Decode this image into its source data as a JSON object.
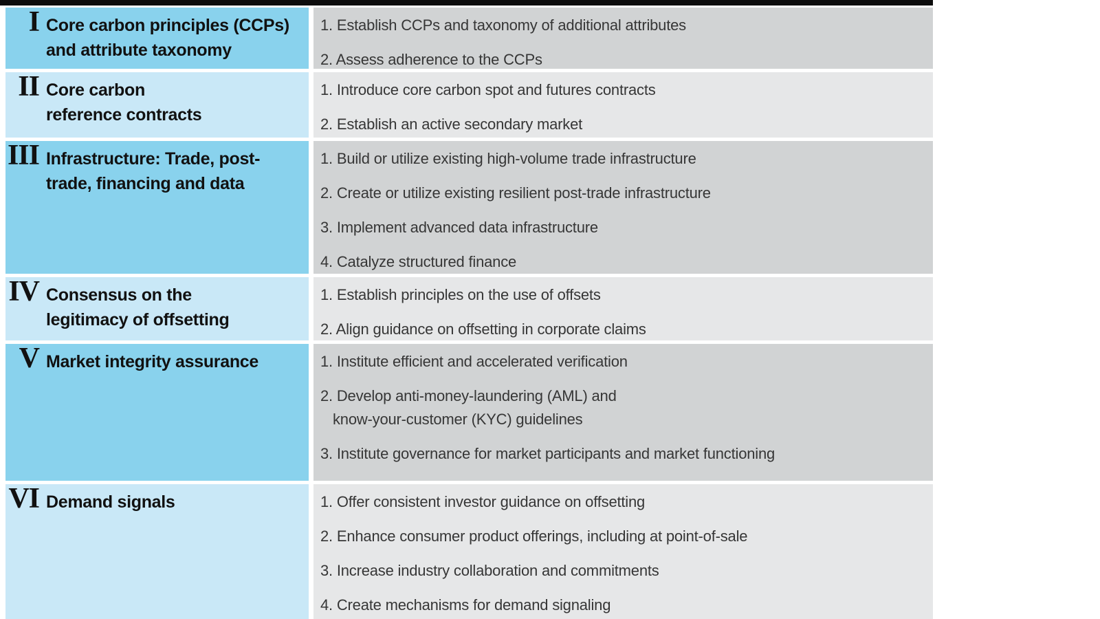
{
  "figure": {
    "colors": {
      "top_bar": "#0c0c0c",
      "workstream_blue_dark": "#89d2ed",
      "workstream_blue_light": "#c9e8f7",
      "actions_gray_dark": "#d1d3d4",
      "actions_gray_light": "#e6e7e8",
      "title_text": "#111111",
      "item_text": "#363636"
    },
    "rows": [
      {
        "numeral": "I",
        "title_lines": [
          "Core carbon principles (CCPs)",
          "and attribute taxonomy"
        ],
        "items": [
          "1. Establish CCPs and taxonomy of additional attributes",
          "2. Assess adherence to the CCPs"
        ]
      },
      {
        "numeral": "II",
        "title_lines": [
          "Core carbon",
          "reference contracts"
        ],
        "items": [
          "1. Introduce core carbon spot and futures contracts",
          "2. Establish an active secondary market"
        ]
      },
      {
        "numeral": "III",
        "title_lines": [
          "Infrastructure: Trade, post-",
          "trade, financing and data"
        ],
        "items": [
          "1. Build or utilize existing high-volume trade infrastructure",
          "2. Create or utilize existing resilient post-trade infrastructure",
          "3. Implement advanced data infrastructure",
          "4. Catalyze structured finance"
        ]
      },
      {
        "numeral": "IV",
        "title_lines": [
          "Consensus on the",
          "legitimacy of offsetting"
        ],
        "items": [
          "1. Establish principles on the use of offsets",
          "2. Align guidance on offsetting in corporate claims"
        ]
      },
      {
        "numeral": "V",
        "title_lines": [
          "Market integrity assurance"
        ],
        "items": [
          "1. Institute efficient and accelerated verification",
          "2. Develop anti-money-laundering (AML) and\nknow-your-customer (KYC) guidelines",
          "3. Institute governance for market participants and market functioning"
        ]
      },
      {
        "numeral": "VI",
        "title_lines": [
          "Demand signals"
        ],
        "items": [
          "1. Offer consistent investor guidance on offsetting",
          "2. Enhance consumer product offerings, including at point-of-sale",
          "3. Increase industry collaboration and commitments",
          "4. Create mechanisms for demand signaling"
        ]
      }
    ]
  }
}
